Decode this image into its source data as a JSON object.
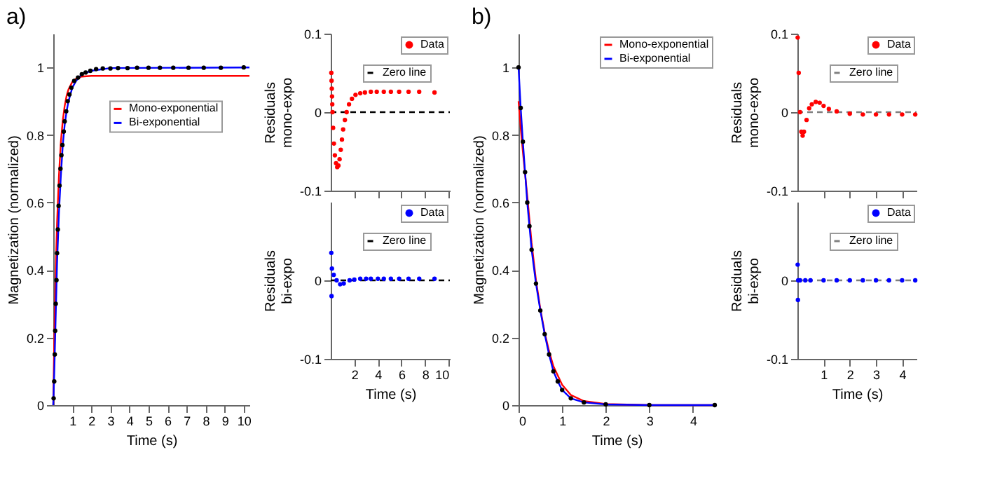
{
  "chart_data": [
    {
      "type": "line",
      "title": "a)",
      "xlabel": "Time (s)",
      "ylabel": "Magnetization (normalized)",
      "xlim": [
        0,
        10.3
      ],
      "ylim": [
        0,
        1.1
      ],
      "xticks": [
        1,
        2,
        3,
        4,
        5,
        6,
        7,
        8,
        9,
        10
      ],
      "yticks": [
        0,
        0.2,
        0.4,
        0.6,
        0.8,
        1
      ],
      "grid": false,
      "legend": "right",
      "series": [
        {
          "type": "scatter",
          "marker": "circle",
          "color": "#000000",
          "x": [
            0.02,
            0.05,
            0.08,
            0.1,
            0.13,
            0.17,
            0.2,
            0.24,
            0.28,
            0.33,
            0.38,
            0.43,
            0.48,
            0.55,
            0.6,
            0.68,
            0.76,
            0.85,
            0.95,
            1.1,
            1.3,
            1.5,
            1.7,
            1.95,
            2.25,
            2.6,
            3.0,
            3.4,
            3.9,
            4.4,
            5.0,
            5.6,
            6.3,
            7.1,
            7.9,
            8.8,
            10.0
          ],
          "values": [
            0.02,
            0.07,
            0.15,
            0.22,
            0.3,
            0.37,
            0.45,
            0.52,
            0.59,
            0.65,
            0.7,
            0.74,
            0.77,
            0.81,
            0.84,
            0.87,
            0.9,
            0.92,
            0.94,
            0.96,
            0.97,
            0.98,
            0.985,
            0.99,
            0.995,
            0.997,
            0.997,
            0.998,
            0.998,
            0.999,
            0.999,
            0.999,
            0.999,
            0.999,
            0.999,
            0.999,
            1.0
          ]
        },
        {
          "name": "Mono-exponential",
          "color": "#ff0000",
          "x": [
            0,
            0.05,
            0.1,
            0.15,
            0.2,
            0.3,
            0.4,
            0.5,
            0.6,
            0.7,
            0.8,
            1.0,
            1.2,
            1.5,
            2,
            10.3
          ],
          "values": [
            0,
            0.18,
            0.32,
            0.44,
            0.54,
            0.68,
            0.78,
            0.843,
            0.886,
            0.916,
            0.935,
            0.957,
            0.967,
            0.973,
            0.975,
            0.975
          ]
        },
        {
          "name": "Bi-exponential",
          "color": "#0000ff",
          "x": [
            0,
            0.05,
            0.1,
            0.15,
            0.2,
            0.3,
            0.4,
            0.5,
            0.6,
            0.7,
            0.8,
            1.0,
            1.2,
            1.5,
            2,
            3,
            10.3
          ],
          "values": [
            0,
            0.09,
            0.2,
            0.31,
            0.42,
            0.57,
            0.68,
            0.77,
            0.83,
            0.87,
            0.9,
            0.94,
            0.96,
            0.98,
            0.99,
            0.998,
            1.0
          ]
        }
      ]
    },
    {
      "type": "scatter",
      "ylabel": "Residuals mono-expo",
      "xlim": [
        0,
        10.1
      ],
      "ylim": [
        -0.1,
        0.1
      ],
      "xticks": [
        2,
        4,
        6,
        8,
        10
      ],
      "yticks": [
        -0.1,
        0,
        0.1
      ],
      "tick_labels": "y",
      "grid": false,
      "legend": "top right",
      "series": [
        {
          "name": "Data",
          "marker": "circle",
          "color": "#ff0000",
          "x": [
            0.05,
            0.07,
            0.09,
            0.11,
            0.13,
            0.15,
            0.2,
            0.27,
            0.35,
            0.45,
            0.55,
            0.65,
            0.75,
            0.85,
            0.95,
            1.05,
            1.2,
            1.35,
            1.55,
            1.8,
            2.1,
            2.5,
            2.9,
            3.4,
            3.9,
            4.5,
            5.1,
            5.8,
            6.6,
            7.5,
            8.8
          ],
          "values": [
            0.05,
            0.04,
            0.03,
            0.02,
            0.01,
            0,
            -0.02,
            -0.04,
            -0.055,
            -0.065,
            -0.07,
            -0.068,
            -0.06,
            -0.048,
            -0.035,
            -0.022,
            -0.01,
            0,
            0.01,
            0.017,
            0.022,
            0.024,
            0.025,
            0.026,
            0.026,
            0.026,
            0.026,
            0.026,
            0.026,
            0.026,
            0.025
          ]
        },
        {
          "name": "Zero line",
          "type": "line",
          "line_style": "dashed",
          "color": "#000000",
          "x": [
            0,
            10.1
          ],
          "values": [
            0,
            0
          ]
        }
      ]
    },
    {
      "type": "scatter",
      "xlabel": "Time (s)",
      "ylabel": "Residuals bi-expo",
      "xlim": [
        0,
        10.1
      ],
      "ylim": [
        -0.1,
        0.1
      ],
      "xticks": [
        2,
        4,
        6,
        8,
        10
      ],
      "yticks": [
        -0.1,
        0
      ],
      "grid": false,
      "legend": "top right",
      "series": [
        {
          "name": "Data",
          "marker": "circle",
          "color": "#0000ff",
          "x": [
            0.05,
            0.07,
            0.1,
            0.25,
            0.5,
            0.8,
            1.1,
            1.6,
            2.0,
            2.5,
            3.0,
            3.4,
            4.0,
            4.5,
            5.1,
            5.8,
            6.6,
            7.5,
            8.8
          ],
          "values": [
            0.035,
            -0.02,
            0.015,
            0.007,
            0,
            -0.005,
            -0.004,
            0,
            0.001,
            0.002,
            0.002,
            0.002,
            0.002,
            0.002,
            0.002,
            0.002,
            0.002,
            0.002,
            0.002
          ]
        },
        {
          "name": "Zero line",
          "type": "line",
          "line_style": "dashed",
          "color": "#000000",
          "x": [
            0,
            10.1
          ],
          "values": [
            0,
            0
          ]
        }
      ]
    },
    {
      "type": "line",
      "title": "b)",
      "xlabel": "Time (s)",
      "ylabel": "Magnetization (normalized)",
      "xlim": [
        0,
        4.5
      ],
      "ylim": [
        0,
        1.1
      ],
      "xticks": [
        0,
        1,
        2,
        3,
        4
      ],
      "yticks": [
        0,
        0.2,
        0.4,
        0.6,
        0.8,
        1
      ],
      "grid": false,
      "legend": "top right",
      "series": [
        {
          "type": "scatter",
          "marker": "circle",
          "color": "#000000",
          "x": [
            0,
            0.05,
            0.1,
            0.15,
            0.2,
            0.25,
            0.3,
            0.4,
            0.5,
            0.6,
            0.7,
            0.8,
            0.9,
            1.0,
            1.2,
            1.5,
            2,
            3,
            4.5
          ],
          "values": [
            1,
            0.88,
            0.78,
            0.69,
            0.6,
            0.53,
            0.46,
            0.36,
            0.28,
            0.21,
            0.15,
            0.1,
            0.07,
            0.045,
            0.02,
            0.008,
            0.002,
            0,
            0
          ]
        },
        {
          "name": "Mono-exponential",
          "color": "#ff0000",
          "x": [
            0,
            0.05,
            0.1,
            0.2,
            0.3,
            0.4,
            0.5,
            0.6,
            0.7,
            0.8,
            1.0,
            1.2,
            1.5,
            2,
            3,
            4.5
          ],
          "values": [
            0.9,
            0.82,
            0.75,
            0.62,
            0.48,
            0.37,
            0.285,
            0.215,
            0.16,
            0.115,
            0.06,
            0.03,
            0.012,
            0.003,
            0,
            0
          ]
        },
        {
          "name": "Bi-exponential",
          "color": "#0000ff",
          "x": [
            0,
            0.05,
            0.1,
            0.15,
            0.2,
            0.25,
            0.3,
            0.4,
            0.5,
            0.6,
            0.7,
            0.8,
            0.9,
            1.0,
            1.2,
            1.5,
            2,
            3,
            4.5
          ],
          "values": [
            1,
            0.88,
            0.78,
            0.69,
            0.6,
            0.53,
            0.46,
            0.36,
            0.28,
            0.21,
            0.15,
            0.1,
            0.07,
            0.045,
            0.02,
            0.008,
            0.002,
            0,
            0
          ]
        }
      ]
    },
    {
      "type": "scatter",
      "ylabel": "Residuals mono-expo",
      "xlim": [
        0,
        4.55
      ],
      "ylim": [
        -0.1,
        0.1
      ],
      "xticks": [
        1,
        2,
        3,
        4
      ],
      "yticks": [
        -0.1,
        0,
        0.1
      ],
      "tick_labels": "y",
      "grid": false,
      "legend": "top right",
      "series": [
        {
          "name": "Data",
          "marker": "circle",
          "color": "#ff0000",
          "x": [
            0.01,
            0.05,
            0.1,
            0.15,
            0.2,
            0.25,
            0.35,
            0.45,
            0.55,
            0.7,
            0.85,
            1.0,
            1.2,
            1.5,
            2,
            2.5,
            3,
            3.5,
            4,
            4.5
          ],
          "values": [
            0.095,
            0.05,
            0,
            -0.025,
            -0.03,
            -0.025,
            -0.01,
            0.005,
            0.01,
            0.013,
            0.012,
            0.008,
            0.004,
            0.001,
            -0.002,
            -0.003,
            -0.003,
            -0.003,
            -0.003,
            -0.003
          ]
        },
        {
          "name": "Zero line",
          "type": "line",
          "line_style": "dashed",
          "color": "#808080",
          "x": [
            0,
            4.55
          ],
          "values": [
            0,
            0
          ]
        }
      ]
    },
    {
      "type": "scatter",
      "xlabel": "Time (s)",
      "ylabel": "Residuals bi-expo",
      "xlim": [
        0,
        4.55
      ],
      "ylim": [
        -0.1,
        0.1
      ],
      "xticks": [
        1,
        2,
        3,
        4
      ],
      "yticks": [
        -0.1,
        0
      ],
      "grid": false,
      "legend": "top right",
      "series": [
        {
          "name": "Data",
          "marker": "circle",
          "color": "#0000ff",
          "x": [
            0.01,
            0.02,
            0.03,
            0.1,
            0.3,
            0.5,
            1,
            1.5,
            2,
            2.5,
            3,
            3.5,
            4,
            4.5
          ],
          "values": [
            0.02,
            -0.025,
            0,
            0,
            0,
            0,
            0,
            0,
            0,
            0,
            0,
            0,
            0,
            0
          ]
        },
        {
          "name": "Zero line",
          "type": "line",
          "line_style": "dashed",
          "color": "#808080",
          "x": [
            0,
            4.55
          ],
          "values": [
            0,
            0
          ]
        }
      ]
    }
  ]
}
